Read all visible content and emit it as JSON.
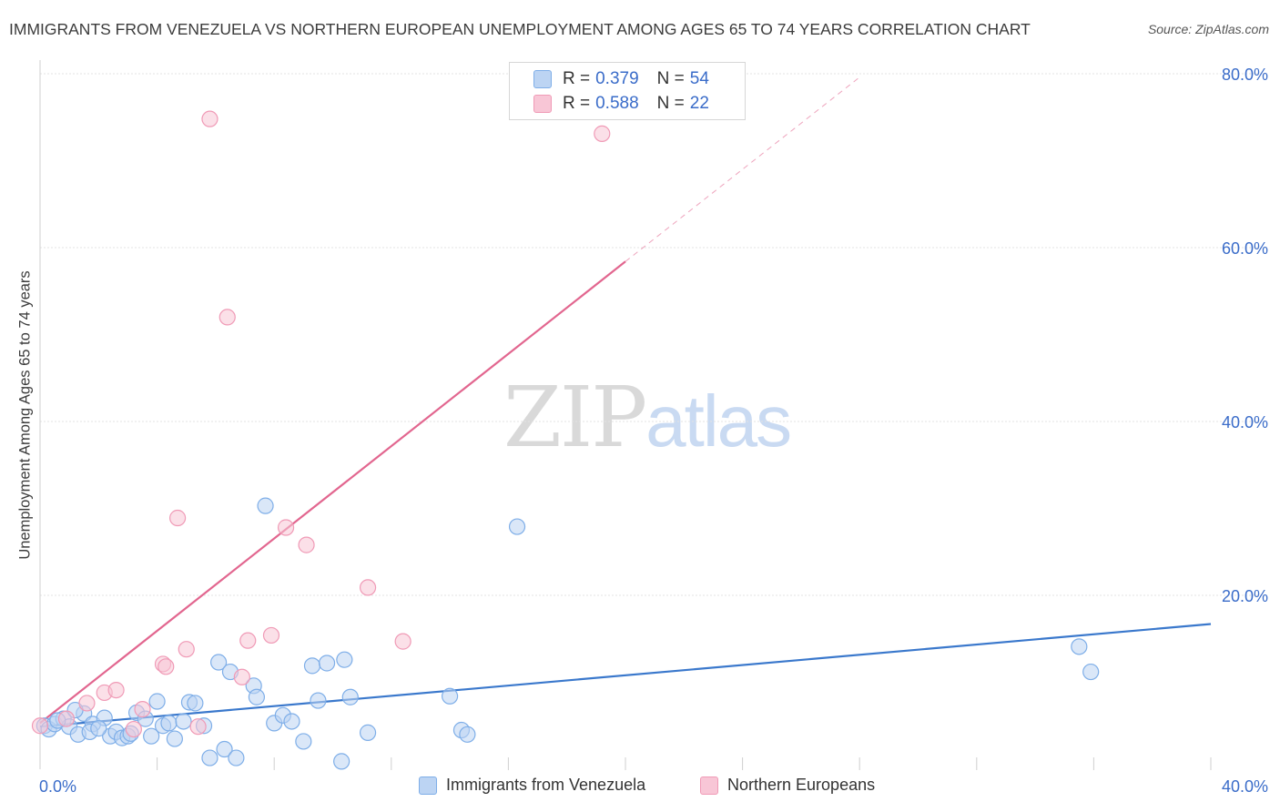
{
  "title": "IMMIGRANTS FROM VENEZUELA VS NORTHERN EUROPEAN UNEMPLOYMENT AMONG AGES 65 TO 74 YEARS CORRELATION CHART",
  "source": "Source: ZipAtlas.com",
  "watermark": {
    "part1": "ZIP",
    "part2": "atlas"
  },
  "legend_stats": [
    {
      "r_label": "R =",
      "r_value": "0.379",
      "n_label": "N =",
      "n_value": "54"
    },
    {
      "r_label": "R =",
      "r_value": "0.588",
      "n_label": "N =",
      "n_value": "22"
    }
  ],
  "chart_data": {
    "type": "scatter",
    "title": "IMMIGRANTS FROM VENEZUELA VS NORTHERN EUROPEAN UNEMPLOYMENT AMONG AGES 65 TO 74 YEARS CORRELATION CHART",
    "xlabel": "",
    "ylabel": "Unemployment Among Ages 65 to 74 years",
    "xlim": [
      0,
      40
    ],
    "ylim": [
      0,
      82
    ],
    "x_tick_labels": [
      {
        "value": 0,
        "label": "0.0%"
      },
      {
        "value": 40,
        "label": "40.0%"
      }
    ],
    "y_tick_labels": [
      {
        "value": 20,
        "label": "20.0%"
      },
      {
        "value": 40,
        "label": "40.0%"
      },
      {
        "value": 60,
        "label": "60.0%"
      },
      {
        "value": 80,
        "label": "80.0%"
      }
    ],
    "y_gridlines": [
      20,
      40,
      60,
      80
    ],
    "x_minor_ticks": [
      4,
      8,
      12,
      16,
      20,
      24,
      28,
      32,
      36,
      40
    ],
    "series": [
      {
        "name": "Immigrants from Venezuela",
        "color": "#7eaee8",
        "fill": "#bcd4f3",
        "line_color": "#3a78cc",
        "trend": {
          "x0": 0,
          "y0": 4.9,
          "x1": 40,
          "y1": 16.7
        },
        "points": [
          [
            0.15,
            5.0
          ],
          [
            0.3,
            4.6
          ],
          [
            0.5,
            5.2
          ],
          [
            0.8,
            5.8
          ],
          [
            1.0,
            4.9
          ],
          [
            1.3,
            4.0
          ],
          [
            1.5,
            6.4
          ],
          [
            1.2,
            6.8
          ],
          [
            1.8,
            5.2
          ],
          [
            2.2,
            5.9
          ],
          [
            2.4,
            3.8
          ],
          [
            2.6,
            4.3
          ],
          [
            2.8,
            3.6
          ],
          [
            3.0,
            3.8
          ],
          [
            3.3,
            6.5
          ],
          [
            3.6,
            5.8
          ],
          [
            3.8,
            3.8
          ],
          [
            4.0,
            7.8
          ],
          [
            4.2,
            5.0
          ],
          [
            4.4,
            5.3
          ],
          [
            4.6,
            3.5
          ],
          [
            4.9,
            5.5
          ],
          [
            5.1,
            7.7
          ],
          [
            5.3,
            7.6
          ],
          [
            5.6,
            5.0
          ],
          [
            5.8,
            1.3
          ],
          [
            6.1,
            12.3
          ],
          [
            6.3,
            2.3
          ],
          [
            6.5,
            11.2
          ],
          [
            6.7,
            1.3
          ],
          [
            7.3,
            9.6
          ],
          [
            7.4,
            8.3
          ],
          [
            7.7,
            30.3
          ],
          [
            8.0,
            5.3
          ],
          [
            8.3,
            6.2
          ],
          [
            8.6,
            5.5
          ],
          [
            9.0,
            3.2
          ],
          [
            9.3,
            11.9
          ],
          [
            9.5,
            7.9
          ],
          [
            9.8,
            12.2
          ],
          [
            10.3,
            0.9
          ],
          [
            10.4,
            12.6
          ],
          [
            10.6,
            8.3
          ],
          [
            11.2,
            4.2
          ],
          [
            14.0,
            8.4
          ],
          [
            14.4,
            4.5
          ],
          [
            14.6,
            4.0
          ],
          [
            16.3,
            27.9
          ],
          [
            35.5,
            14.1
          ],
          [
            35.9,
            11.2
          ],
          [
            1.7,
            4.3
          ],
          [
            0.6,
            5.6
          ],
          [
            2.0,
            4.7
          ],
          [
            3.1,
            4.1
          ]
        ]
      },
      {
        "name": "Northern Europeans",
        "color": "#f09ab6",
        "fill": "#f8c6d6",
        "line_color": "#e2668f",
        "trend": {
          "x0": 0,
          "y0": 5.3,
          "x1": 20.0,
          "y1": 58.4,
          "dash_x1": 28.0,
          "dash_y1": 79.6
        },
        "points": [
          [
            0.0,
            5.0
          ],
          [
            0.9,
            5.8
          ],
          [
            1.6,
            7.6
          ],
          [
            2.2,
            8.8
          ],
          [
            2.6,
            9.1
          ],
          [
            3.2,
            4.6
          ],
          [
            3.5,
            6.9
          ],
          [
            4.2,
            12.1
          ],
          [
            4.3,
            11.8
          ],
          [
            4.7,
            28.9
          ],
          [
            5.0,
            13.8
          ],
          [
            5.4,
            4.9
          ],
          [
            5.8,
            74.8
          ],
          [
            6.4,
            52.0
          ],
          [
            6.9,
            10.6
          ],
          [
            7.1,
            14.8
          ],
          [
            7.9,
            15.4
          ],
          [
            8.4,
            27.8
          ],
          [
            9.1,
            25.8
          ],
          [
            11.2,
            20.9
          ],
          [
            12.4,
            14.7
          ],
          [
            19.2,
            73.1
          ]
        ]
      }
    ]
  },
  "bottom_legend": [
    {
      "label": "Immigrants from Venezuela"
    },
    {
      "label": "Northern Europeans"
    }
  ]
}
